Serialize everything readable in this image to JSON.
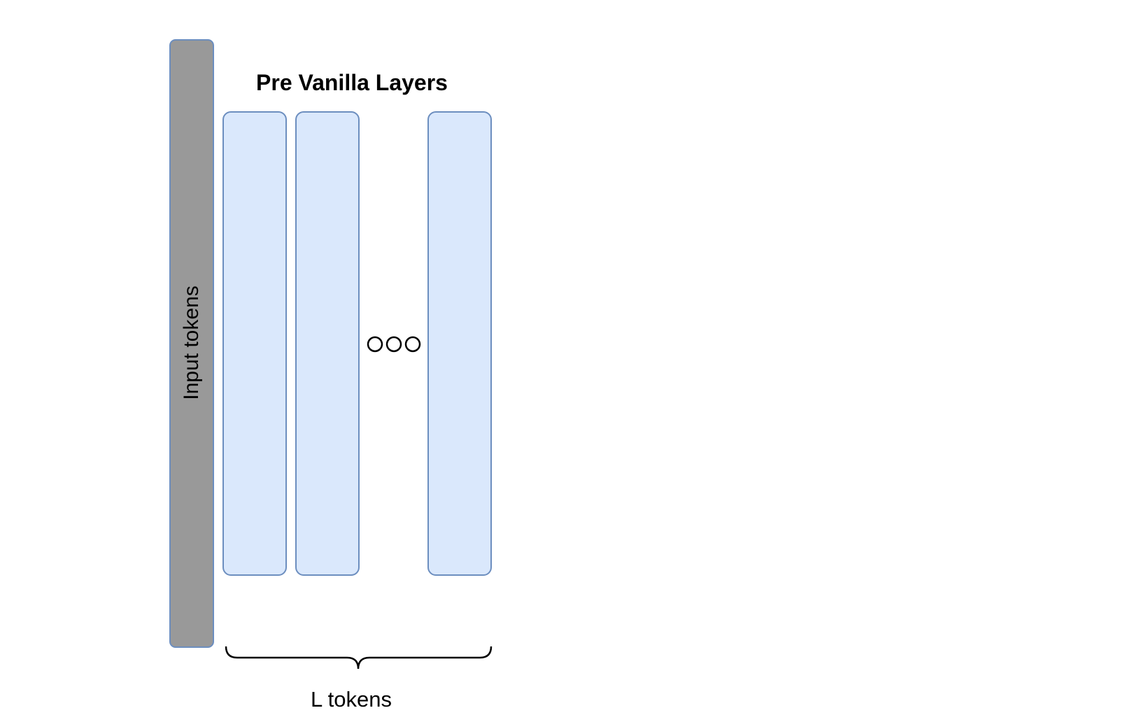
{
  "diagram": {
    "title": "Pre Vanilla Layers",
    "input_label": "Input tokens",
    "bottom_label": "L tokens",
    "layer_count_shown": 3,
    "ellipsis": "ooo",
    "colors": {
      "input_fill": "#999999",
      "layer_fill": "#dae8fc",
      "stroke": "#6c8ebf"
    }
  }
}
